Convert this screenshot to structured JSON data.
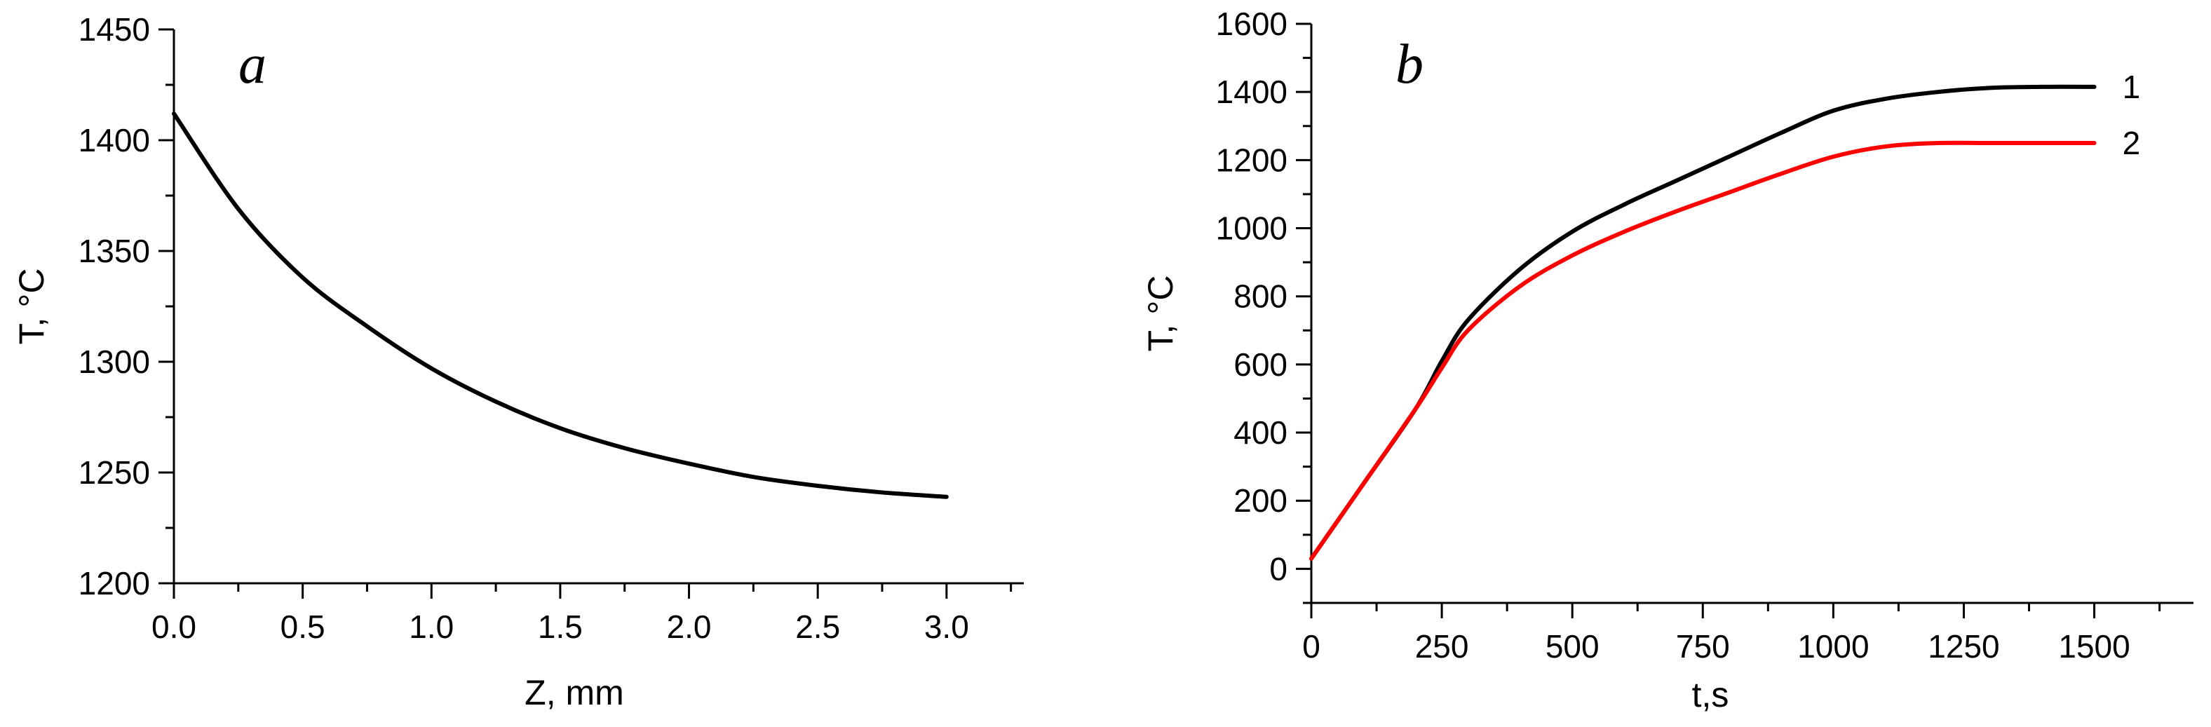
{
  "chart_data": [
    {
      "type": "line",
      "panel": "a",
      "xlabel": "Z, mm",
      "ylabel": "T, °C",
      "xlim": [
        0,
        3.3
      ],
      "ylim": [
        1200,
        1450
      ],
      "xticks": [
        0,
        0.5,
        1,
        1.5,
        2,
        2.5,
        3
      ],
      "xtick_labels": [
        "0.0",
        "0.5",
        "1.0",
        "1.5",
        "2.0",
        "2.5",
        "3.0"
      ],
      "yticks": [
        1200,
        1250,
        1300,
        1350,
        1400,
        1450
      ],
      "ytick_labels": [
        "1200",
        "1250",
        "1300",
        "1350",
        "1400",
        "1450"
      ],
      "grid": false,
      "series": [
        {
          "color": "#000000",
          "x": [
            0,
            0.25,
            0.5,
            0.75,
            1.0,
            1.25,
            1.5,
            1.75,
            2.0,
            2.25,
            2.5,
            2.75,
            3.0
          ],
          "y": [
            1412,
            1369,
            1338,
            1316,
            1297,
            1282,
            1270,
            1261,
            1254,
            1248,
            1244,
            1241,
            1239
          ]
        }
      ]
    },
    {
      "type": "line",
      "panel": "b",
      "xlabel": "t,s",
      "ylabel": "T, °C",
      "xlim": [
        0,
        1690
      ],
      "ylim": [
        -100,
        1600
      ],
      "xticks": [
        0,
        250,
        500,
        750,
        1000,
        1250,
        1500
      ],
      "xtick_labels": [
        "0",
        "250",
        "500",
        "750",
        "1000",
        "1250",
        "1500"
      ],
      "yticks": [
        0,
        200,
        400,
        600,
        800,
        1000,
        1200,
        1400,
        1600
      ],
      "ytick_labels": [
        "0",
        "200",
        "400",
        "600",
        "800",
        "1000",
        "1200",
        "1400",
        "1600"
      ],
      "grid": false,
      "series": [
        {
          "name": "1",
          "color": "#000000",
          "x": [
            0,
            100,
            200,
            250,
            300,
            400,
            500,
            600,
            700,
            800,
            900,
            1000,
            1100,
            1200,
            1300,
            1400,
            1500
          ],
          "y": [
            30,
            250,
            470,
            610,
            730,
            880,
            990,
            1070,
            1140,
            1210,
            1280,
            1345,
            1380,
            1400,
            1412,
            1415,
            1415
          ]
        },
        {
          "name": "2",
          "color": "#ff0000",
          "x": [
            0,
            100,
            200,
            250,
            300,
            400,
            500,
            600,
            700,
            800,
            900,
            1000,
            1100,
            1200,
            1300,
            1400,
            1500
          ],
          "y": [
            30,
            250,
            470,
            590,
            700,
            830,
            920,
            990,
            1050,
            1105,
            1160,
            1210,
            1240,
            1250,
            1250,
            1250,
            1250
          ]
        }
      ]
    }
  ]
}
